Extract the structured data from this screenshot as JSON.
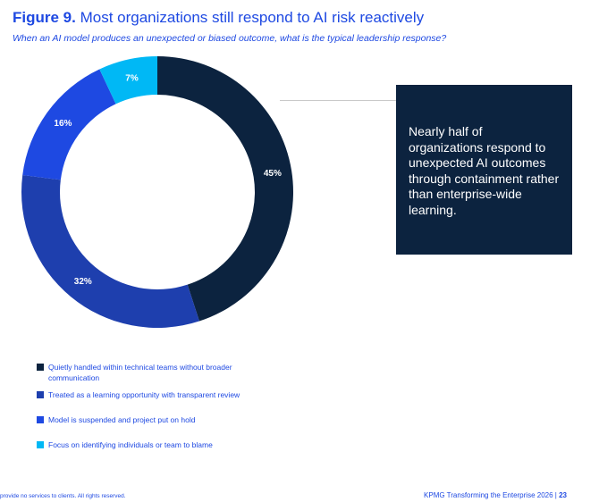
{
  "figure": {
    "number": "Figure 9.",
    "title": "Most organizations still respond to AI risk reactively",
    "subtitle": "When an AI model produces an unexpected or biased outcome, what is the typical leadership response?"
  },
  "callout": {
    "text": "Nearly half of organizations respond to unexpected AI outcomes through containment rather than enterprise-wide learning."
  },
  "chart_data": {
    "type": "pie",
    "donut": true,
    "categories": [
      "Quietly handled within technical teams without broader communication",
      "Treated as a learning opportunity with transparent review",
      "Model is suspended and project put on hold",
      "Focus on identifying individuals or team to blame"
    ],
    "values": [
      45,
      32,
      16,
      7
    ],
    "labels": [
      "45%",
      "32%",
      "16%",
      "7%"
    ],
    "colors": [
      "#0c233f",
      "#1e3fae",
      "#1e49e2",
      "#00b8f5"
    ],
    "legend_position": "bottom-left"
  },
  "footer": {
    "left": "provide no services to clients. All rights reserved.",
    "right_text": "KPMG Transforming the Enterprise 2026",
    "separator": "|",
    "page_number": "23"
  }
}
